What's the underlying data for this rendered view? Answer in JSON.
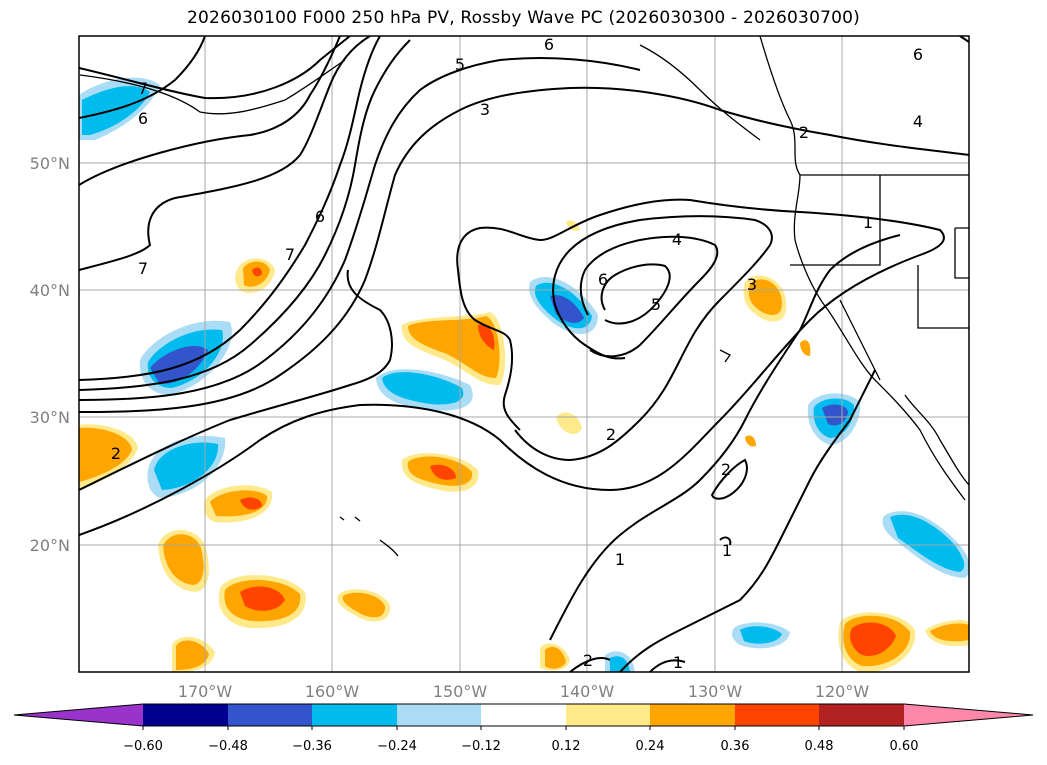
{
  "title": "2026030100 F000 250 hPa PV, Rossby Wave PC (2026030300 - 2026030700)",
  "map": {
    "lat_labels": [
      "50°N",
      "40°N",
      "30°N",
      "20°N"
    ],
    "lon_labels": [
      "170°W",
      "160°W",
      "150°W",
      "140°W",
      "130°W",
      "120°W"
    ],
    "contour_labels": [
      {
        "text": "6",
        "where": "top"
      },
      {
        "text": "5",
        "where": "top"
      },
      {
        "text": "3",
        "where": "top"
      },
      {
        "text": "7",
        "where": "top-left"
      },
      {
        "text": "6",
        "where": "top-left"
      },
      {
        "text": "6",
        "where": "top-right"
      },
      {
        "text": "4",
        "where": "right"
      },
      {
        "text": "2",
        "where": "right"
      },
      {
        "text": "1",
        "where": "right"
      },
      {
        "text": "7",
        "where": "left"
      },
      {
        "text": "7",
        "where": "center-left"
      },
      {
        "text": "6",
        "where": "center-left"
      },
      {
        "text": "4",
        "where": "center"
      },
      {
        "text": "6",
        "where": "center"
      },
      {
        "text": "5",
        "where": "center"
      },
      {
        "text": "3",
        "where": "center-right"
      },
      {
        "text": "2",
        "where": "center"
      },
      {
        "text": "2",
        "where": "left"
      },
      {
        "text": "2",
        "where": "center-right"
      },
      {
        "text": "1",
        "where": "bottom-right"
      },
      {
        "text": "1",
        "where": "bottom"
      },
      {
        "text": "2",
        "where": "bottom"
      },
      {
        "text": "1",
        "where": "bottom"
      }
    ]
  },
  "colorbar": {
    "ticks": [
      "−0.60",
      "−0.48",
      "−0.36",
      "−0.24",
      "−0.12",
      "0.12",
      "0.24",
      "0.36",
      "0.48",
      "0.60"
    ],
    "colors": [
      "#9933cc",
      "#000090",
      "#3355cc",
      "#00bbee",
      "#aaddf5",
      "#ffffff",
      "#ffe98a",
      "#ffa500",
      "#ff4400",
      "#b22222",
      "#ff88aa"
    ]
  }
}
